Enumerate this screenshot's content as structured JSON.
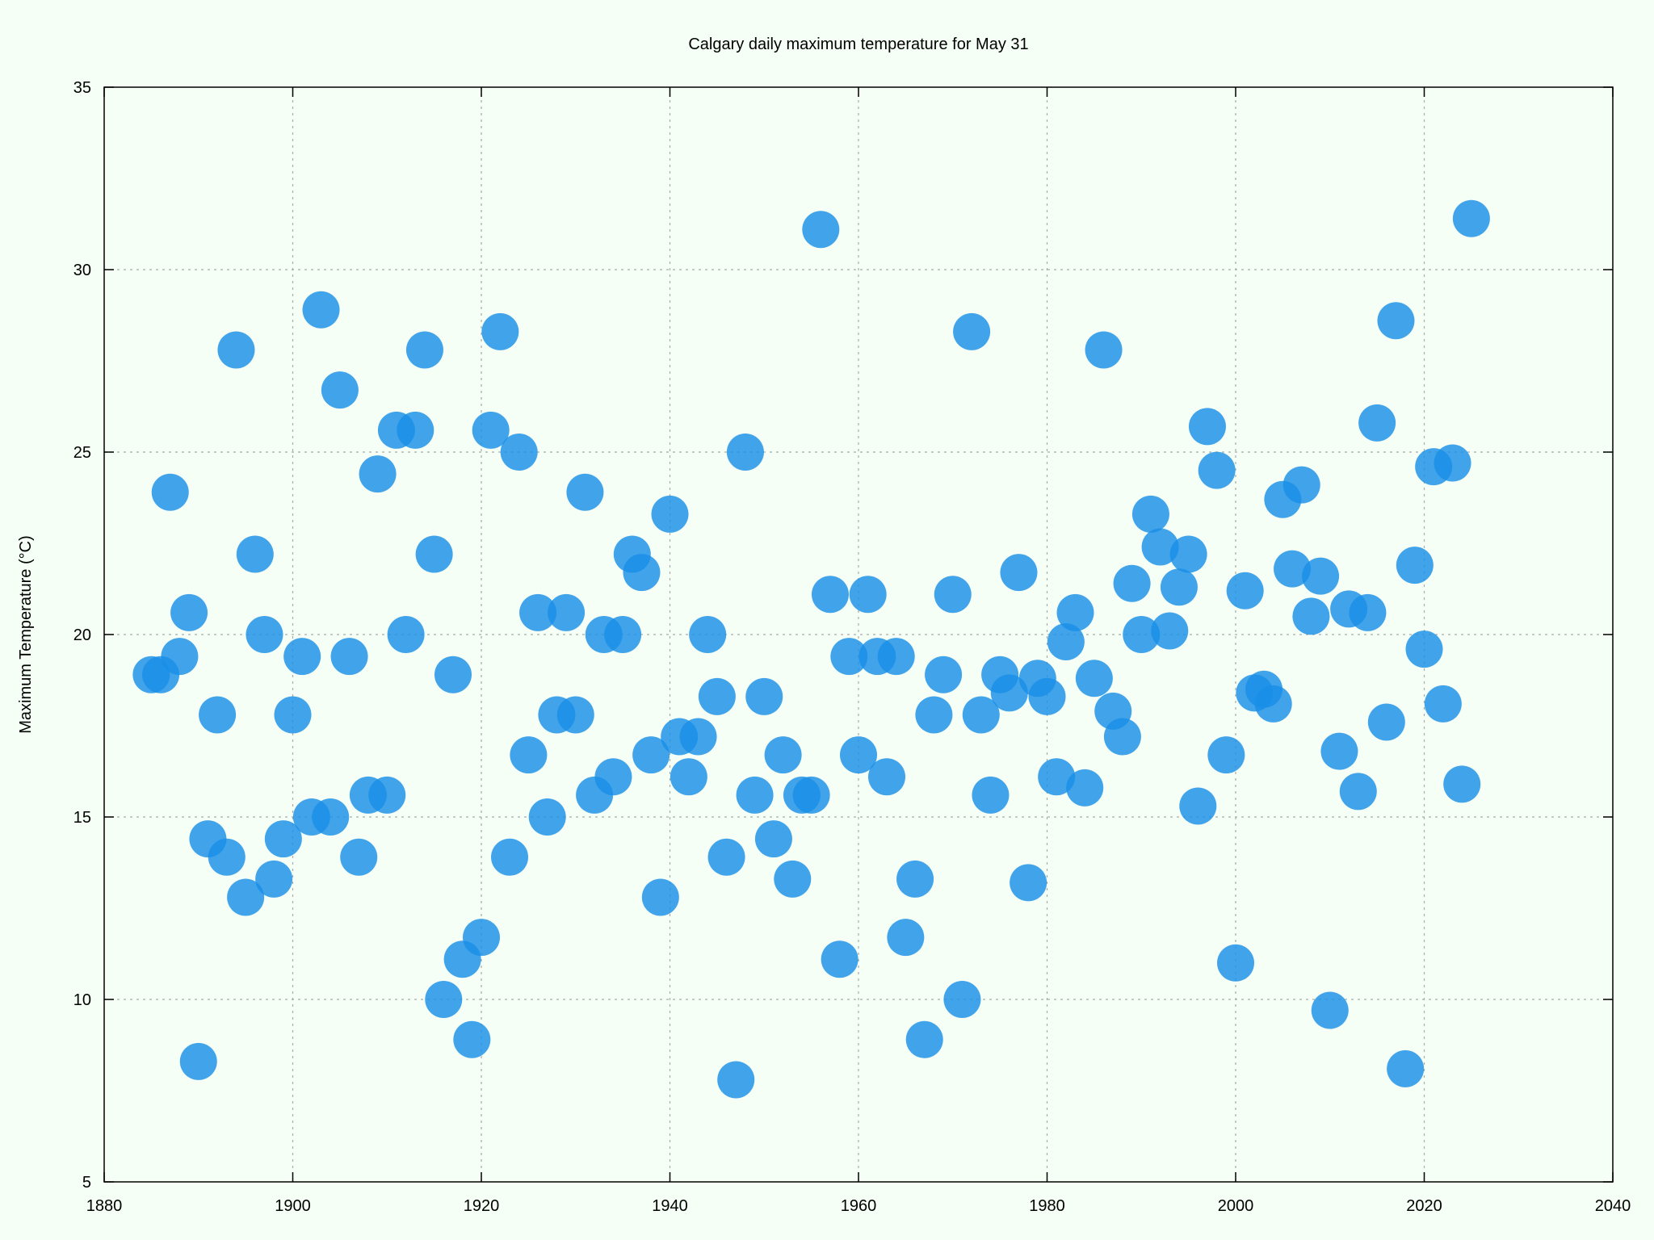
{
  "chart_data": {
    "type": "scatter",
    "title": "Calgary daily maximum temperature for May 31",
    "xlabel": "",
    "ylabel": "Maximum Temperature (°C)",
    "xlim": [
      1880,
      2040
    ],
    "ylim": [
      5,
      35
    ],
    "xticks": [
      1880,
      1900,
      1920,
      1940,
      1960,
      1980,
      2000,
      2020,
      2040
    ],
    "yticks": [
      5,
      10,
      15,
      20,
      25,
      30,
      35
    ],
    "grid": true,
    "legend": "none",
    "marker_color": "#1a8fe8",
    "background_color": "#f5fff5",
    "series": [
      {
        "points": [
          [
            1885,
            18.9
          ],
          [
            1886,
            18.9
          ],
          [
            1887,
            23.9
          ],
          [
            1888,
            19.4
          ],
          [
            1889,
            20.6
          ],
          [
            1890,
            8.3
          ],
          [
            1891,
            14.4
          ],
          [
            1892,
            17.8
          ],
          [
            1893,
            13.9
          ],
          [
            1894,
            27.8
          ],
          [
            1895,
            12.8
          ],
          [
            1896,
            22.2
          ],
          [
            1897,
            20.0
          ],
          [
            1898,
            13.3
          ],
          [
            1899,
            14.4
          ],
          [
            1900,
            17.8
          ],
          [
            1901,
            19.4
          ],
          [
            1902,
            15.0
          ],
          [
            1903,
            28.9
          ],
          [
            1904,
            15.0
          ],
          [
            1905,
            26.7
          ],
          [
            1906,
            19.4
          ],
          [
            1907,
            13.9
          ],
          [
            1908,
            15.6
          ],
          [
            1909,
            24.4
          ],
          [
            1910,
            15.6
          ],
          [
            1911,
            25.6
          ],
          [
            1912,
            20.0
          ],
          [
            1913,
            25.6
          ],
          [
            1914,
            27.8
          ],
          [
            1915,
            22.2
          ],
          [
            1916,
            10.0
          ],
          [
            1917,
            18.9
          ],
          [
            1918,
            11.1
          ],
          [
            1919,
            8.9
          ],
          [
            1920,
            11.7
          ],
          [
            1921,
            25.6
          ],
          [
            1922,
            28.3
          ],
          [
            1923,
            13.9
          ],
          [
            1924,
            25.0
          ],
          [
            1925,
            16.7
          ],
          [
            1926,
            20.6
          ],
          [
            1927,
            15.0
          ],
          [
            1928,
            17.8
          ],
          [
            1929,
            20.6
          ],
          [
            1930,
            17.8
          ],
          [
            1931,
            23.9
          ],
          [
            1932,
            15.6
          ],
          [
            1933,
            20.0
          ],
          [
            1934,
            16.1
          ],
          [
            1935,
            20.0
          ],
          [
            1936,
            22.2
          ],
          [
            1937,
            21.7
          ],
          [
            1938,
            16.7
          ],
          [
            1939,
            12.8
          ],
          [
            1940,
            23.3
          ],
          [
            1941,
            17.2
          ],
          [
            1942,
            16.1
          ],
          [
            1943,
            17.2
          ],
          [
            1944,
            20.0
          ],
          [
            1945,
            18.3
          ],
          [
            1946,
            13.9
          ],
          [
            1947,
            7.8
          ],
          [
            1948,
            25.0
          ],
          [
            1949,
            15.6
          ],
          [
            1950,
            18.3
          ],
          [
            1951,
            14.4
          ],
          [
            1952,
            16.7
          ],
          [
            1953,
            13.3
          ],
          [
            1954,
            15.6
          ],
          [
            1955,
            15.6
          ],
          [
            1956,
            31.1
          ],
          [
            1957,
            21.1
          ],
          [
            1958,
            11.1
          ],
          [
            1959,
            19.4
          ],
          [
            1960,
            16.7
          ],
          [
            1961,
            21.1
          ],
          [
            1962,
            19.4
          ],
          [
            1963,
            16.1
          ],
          [
            1964,
            19.4
          ],
          [
            1965,
            11.7
          ],
          [
            1966,
            13.3
          ],
          [
            1967,
            8.9
          ],
          [
            1968,
            17.8
          ],
          [
            1969,
            18.9
          ],
          [
            1970,
            21.1
          ],
          [
            1971,
            10.0
          ],
          [
            1972,
            28.3
          ],
          [
            1973,
            17.8
          ],
          [
            1974,
            15.6
          ],
          [
            1975,
            18.9
          ],
          [
            1976,
            18.4
          ],
          [
            1977,
            21.7
          ],
          [
            1978,
            13.2
          ],
          [
            1979,
            18.8
          ],
          [
            1980,
            18.3
          ],
          [
            1981,
            16.1
          ],
          [
            1982,
            19.8
          ],
          [
            1983,
            20.6
          ],
          [
            1984,
            15.8
          ],
          [
            1985,
            18.8
          ],
          [
            1986,
            27.8
          ],
          [
            1987,
            17.9
          ],
          [
            1988,
            17.2
          ],
          [
            1989,
            21.4
          ],
          [
            1990,
            20.0
          ],
          [
            1991,
            23.3
          ],
          [
            1992,
            22.4
          ],
          [
            1993,
            20.1
          ],
          [
            1994,
            21.3
          ],
          [
            1995,
            22.2
          ],
          [
            1996,
            15.3
          ],
          [
            1997,
            25.7
          ],
          [
            1998,
            24.5
          ],
          [
            1999,
            16.7
          ],
          [
            2000,
            11.0
          ],
          [
            2001,
            21.2
          ],
          [
            2002,
            18.4
          ],
          [
            2003,
            18.5
          ],
          [
            2004,
            18.1
          ],
          [
            2005,
            23.7
          ],
          [
            2006,
            21.8
          ],
          [
            2007,
            24.1
          ],
          [
            2008,
            20.5
          ],
          [
            2009,
            21.6
          ],
          [
            2010,
            9.7
          ],
          [
            2011,
            16.8
          ],
          [
            2012,
            20.7
          ],
          [
            2013,
            15.7
          ],
          [
            2014,
            20.6
          ],
          [
            2015,
            25.8
          ],
          [
            2016,
            17.6
          ],
          [
            2017,
            28.6
          ],
          [
            2018,
            8.1
          ],
          [
            2019,
            21.9
          ],
          [
            2020,
            19.6
          ],
          [
            2021,
            24.6
          ],
          [
            2022,
            18.1
          ],
          [
            2023,
            24.7
          ],
          [
            2024,
            15.9
          ],
          [
            2025,
            31.4
          ]
        ]
      }
    ]
  }
}
